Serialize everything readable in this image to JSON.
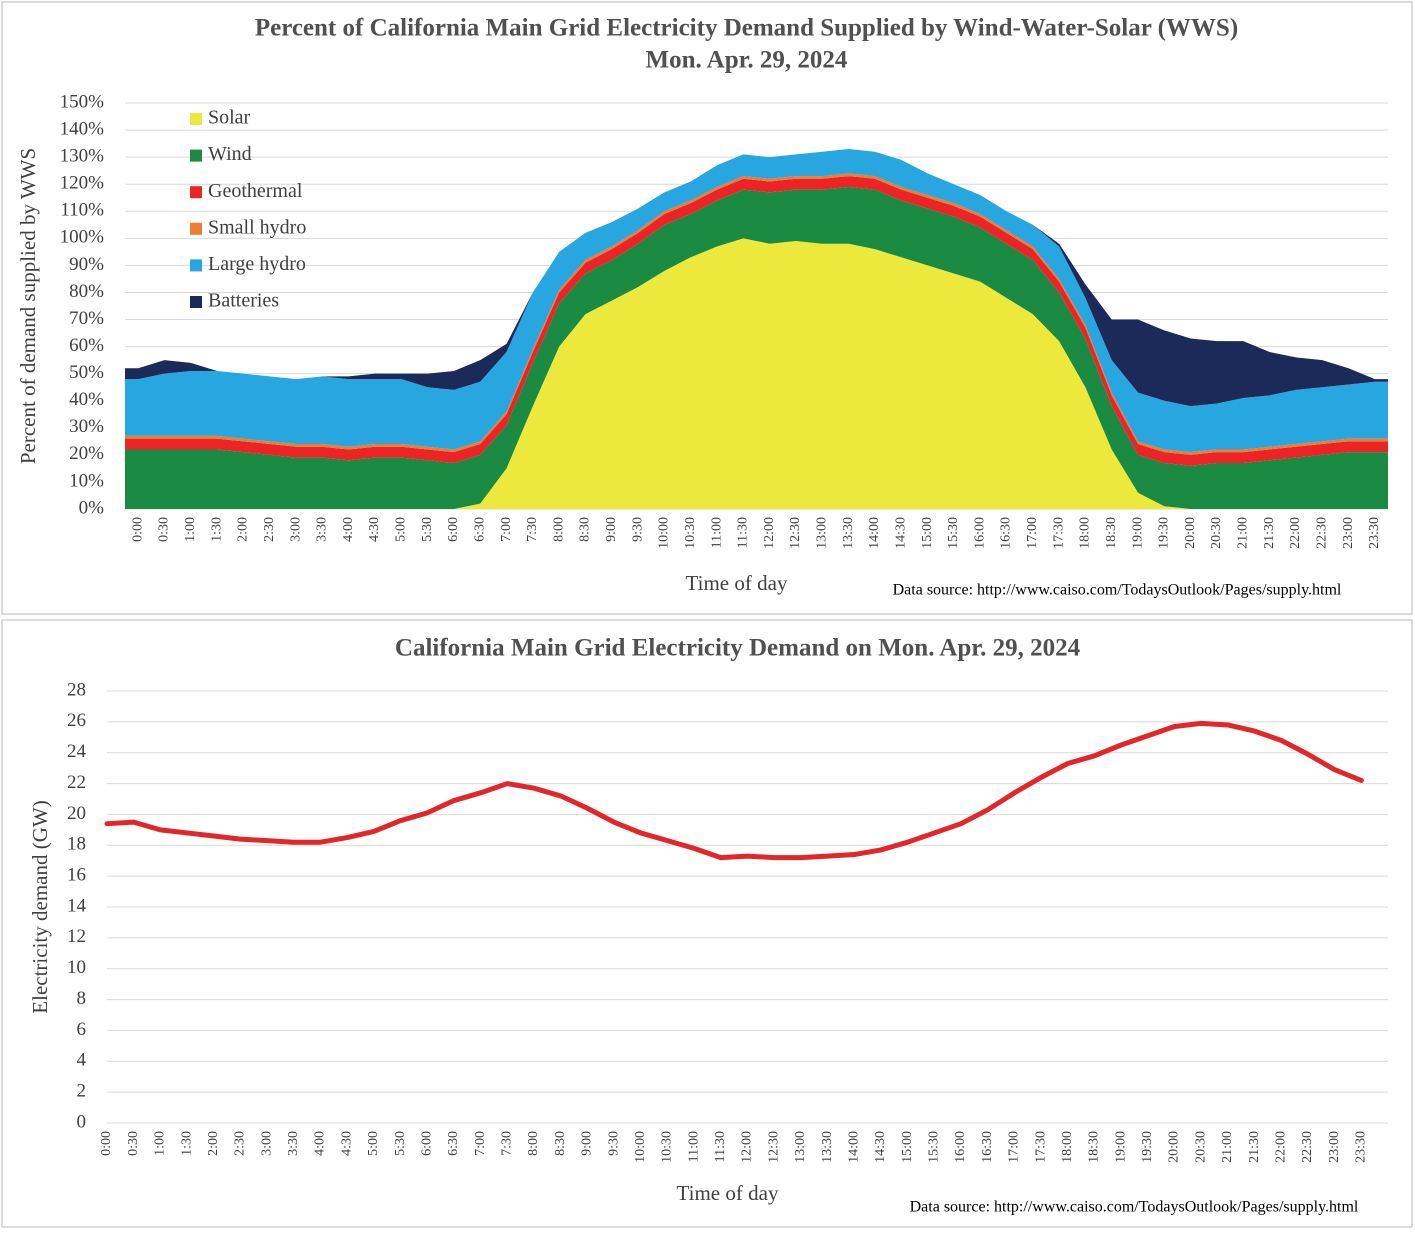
{
  "chart_data": [
    {
      "type": "area",
      "stacked": true,
      "title": [
        "Percent of California Main Grid Electricity Demand Supplied by Wind-Water-Solar (WWS)",
        "Mon. Apr. 29, 2024"
      ],
      "xlabel": "Time of day",
      "ylabel": "Percent of demand supplied by WWS",
      "source": "Data source: http://www.caiso.com/TodaysOutlook/Pages/supply.html",
      "categories": [
        "0:00",
        "0:30",
        "1:00",
        "1:30",
        "2:00",
        "2:30",
        "3:00",
        "3:30",
        "4:00",
        "4:30",
        "5:00",
        "5:30",
        "6:00",
        "6:30",
        "7:00",
        "7:30",
        "8:00",
        "8:30",
        "9:00",
        "9:30",
        "10:00",
        "10:30",
        "11:00",
        "11:30",
        "12:00",
        "12:30",
        "13:00",
        "13:30",
        "14:00",
        "14:30",
        "15:00",
        "15:30",
        "16:00",
        "16:30",
        "17:00",
        "17:30",
        "18:00",
        "18:30",
        "19:00",
        "19:30",
        "20:00",
        "20:30",
        "21:00",
        "21:30",
        "22:00",
        "22:30",
        "23:00",
        "23:30"
      ],
      "series": [
        {
          "name": "Solar",
          "color": "#ece93c",
          "values": [
            0,
            0,
            0,
            0,
            0,
            0,
            0,
            0,
            0,
            0,
            0,
            0,
            0,
            2,
            15,
            38,
            60,
            72,
            77,
            82,
            88,
            93,
            97,
            100,
            98,
            99,
            98,
            98,
            96,
            93,
            90,
            87,
            84,
            78,
            72,
            62,
            45,
            22,
            6,
            1,
            0,
            0,
            0,
            0,
            0,
            0,
            0,
            0
          ]
        },
        {
          "name": "Wind",
          "color": "#1b8a43",
          "values": [
            22,
            22,
            22,
            22,
            21,
            20,
            19,
            19,
            18,
            19,
            19,
            18,
            17,
            18,
            16,
            16,
            16,
            15,
            15,
            16,
            17,
            16,
            17,
            18,
            19,
            19,
            20,
            21,
            22,
            21,
            21,
            21,
            20,
            20,
            20,
            18,
            18,
            16,
            14,
            16,
            16,
            17,
            17,
            18,
            19,
            20,
            21,
            21
          ]
        },
        {
          "name": "Geothermal",
          "color": "#ec2426",
          "values": [
            4,
            4,
            4,
            4,
            4,
            4,
            4,
            4,
            4,
            4,
            4,
            4,
            4,
            4,
            4,
            4,
            4,
            4,
            4,
            4,
            4,
            4,
            4,
            4,
            4,
            4,
            4,
            4,
            4,
            4,
            4,
            4,
            4,
            4,
            4,
            4,
            4,
            4,
            4,
            4,
            4,
            4,
            4,
            4,
            4,
            4,
            4,
            4
          ]
        },
        {
          "name": "Small hydro",
          "color": "#ec7d31",
          "values": [
            1,
            1,
            1,
            1,
            1,
            1,
            1,
            1,
            1,
            1,
            1,
            1,
            1,
            1,
            1,
            1,
            1,
            1,
            1,
            1,
            1,
            1,
            1,
            1,
            1,
            1,
            1,
            1,
            1,
            1,
            1,
            1,
            1,
            1,
            1,
            1,
            1,
            1,
            1,
            1,
            1,
            1,
            1,
            1,
            1,
            1,
            1,
            1
          ]
        },
        {
          "name": "Large hydro",
          "color": "#28a6df",
          "values": [
            21,
            23,
            24,
            24,
            24,
            24,
            24,
            25,
            25,
            24,
            24,
            22,
            22,
            22,
            22,
            21,
            14,
            10,
            9,
            8,
            7,
            7,
            8,
            8,
            8,
            8,
            9,
            9,
            9,
            10,
            8,
            7,
            7,
            7,
            8,
            12,
            10,
            12,
            18,
            18,
            17,
            17,
            19,
            19,
            20,
            20,
            20,
            21
          ]
        },
        {
          "name": "Batteries",
          "color": "#1c2a5a",
          "values": [
            4,
            5,
            3,
            0,
            0,
            0,
            0,
            0,
            1,
            2,
            2,
            5,
            7,
            8,
            3,
            0,
            0,
            0,
            0,
            0,
            0,
            0,
            0,
            0,
            0,
            0,
            0,
            0,
            0,
            0,
            0,
            0,
            0,
            0,
            0,
            1,
            5,
            15,
            27,
            26,
            25,
            23,
            21,
            16,
            12,
            10,
            6,
            1
          ]
        }
      ],
      "ylim": [
        0,
        150
      ],
      "yticks": [
        {
          "value": 0,
          "label": "0%"
        },
        {
          "value": 10,
          "label": "10%"
        },
        {
          "value": 20,
          "label": "20%"
        },
        {
          "value": 30,
          "label": "30%"
        },
        {
          "value": 40,
          "label": "40%"
        },
        {
          "value": 50,
          "label": "50%"
        },
        {
          "value": 60,
          "label": "60%"
        },
        {
          "value": 70,
          "label": "70%"
        },
        {
          "value": 80,
          "label": "80%"
        },
        {
          "value": 90,
          "label": "90%"
        },
        {
          "value": 100,
          "label": "100%"
        },
        {
          "value": 110,
          "label": "110%"
        },
        {
          "value": 120,
          "label": "120%"
        },
        {
          "value": 130,
          "label": "130%"
        },
        {
          "value": 140,
          "label": "140%"
        },
        {
          "value": 150,
          "label": "150%"
        }
      ],
      "grid": true,
      "legend": "top-left"
    },
    {
      "type": "line",
      "title": [
        "California Main Grid Electricity Demand on Mon. Apr. 29, 2024"
      ],
      "xlabel": "Time of day",
      "ylabel": "Electricity demand (GW)",
      "source": "Data source: http://www.caiso.com/TodaysOutlook/Pages/supply.html",
      "categories": [
        "0:00",
        "0:30",
        "1:00",
        "1:30",
        "2:00",
        "2:30",
        "3:00",
        "3:30",
        "4:00",
        "4:30",
        "5:00",
        "5:30",
        "6:00",
        "6:30",
        "7:00",
        "7:30",
        "8:00",
        "8:30",
        "9:00",
        "9:30",
        "10:00",
        "10:30",
        "11:00",
        "11:30",
        "12:00",
        "12:30",
        "13:00",
        "13:30",
        "14:00",
        "14:30",
        "15:00",
        "15:30",
        "16:00",
        "16:30",
        "17:00",
        "17:30",
        "18:00",
        "18:30",
        "19:00",
        "19:30",
        "20:00",
        "20:30",
        "21:00",
        "21:30",
        "22:00",
        "22:30",
        "23:00",
        "23:30"
      ],
      "color": "#e3262a",
      "values": [
        19.4,
        19.5,
        19.0,
        18.8,
        18.6,
        18.4,
        18.3,
        18.2,
        18.2,
        18.5,
        18.9,
        19.6,
        20.1,
        20.9,
        21.4,
        22.0,
        21.7,
        21.2,
        20.4,
        19.5,
        18.8,
        18.3,
        17.8,
        17.2,
        17.3,
        17.2,
        17.2,
        17.3,
        17.4,
        17.7,
        18.2,
        18.8,
        19.4,
        20.3,
        21.4,
        22.4,
        23.3,
        23.8,
        24.5,
        25.1,
        25.7,
        25.9,
        25.8,
        25.4,
        24.8,
        23.9,
        22.9,
        22.2
      ],
      "ylim": [
        0,
        28
      ],
      "yticks": [
        0,
        2,
        4,
        6,
        8,
        10,
        12,
        14,
        16,
        18,
        20,
        22,
        24,
        26,
        28
      ],
      "grid": true
    }
  ]
}
